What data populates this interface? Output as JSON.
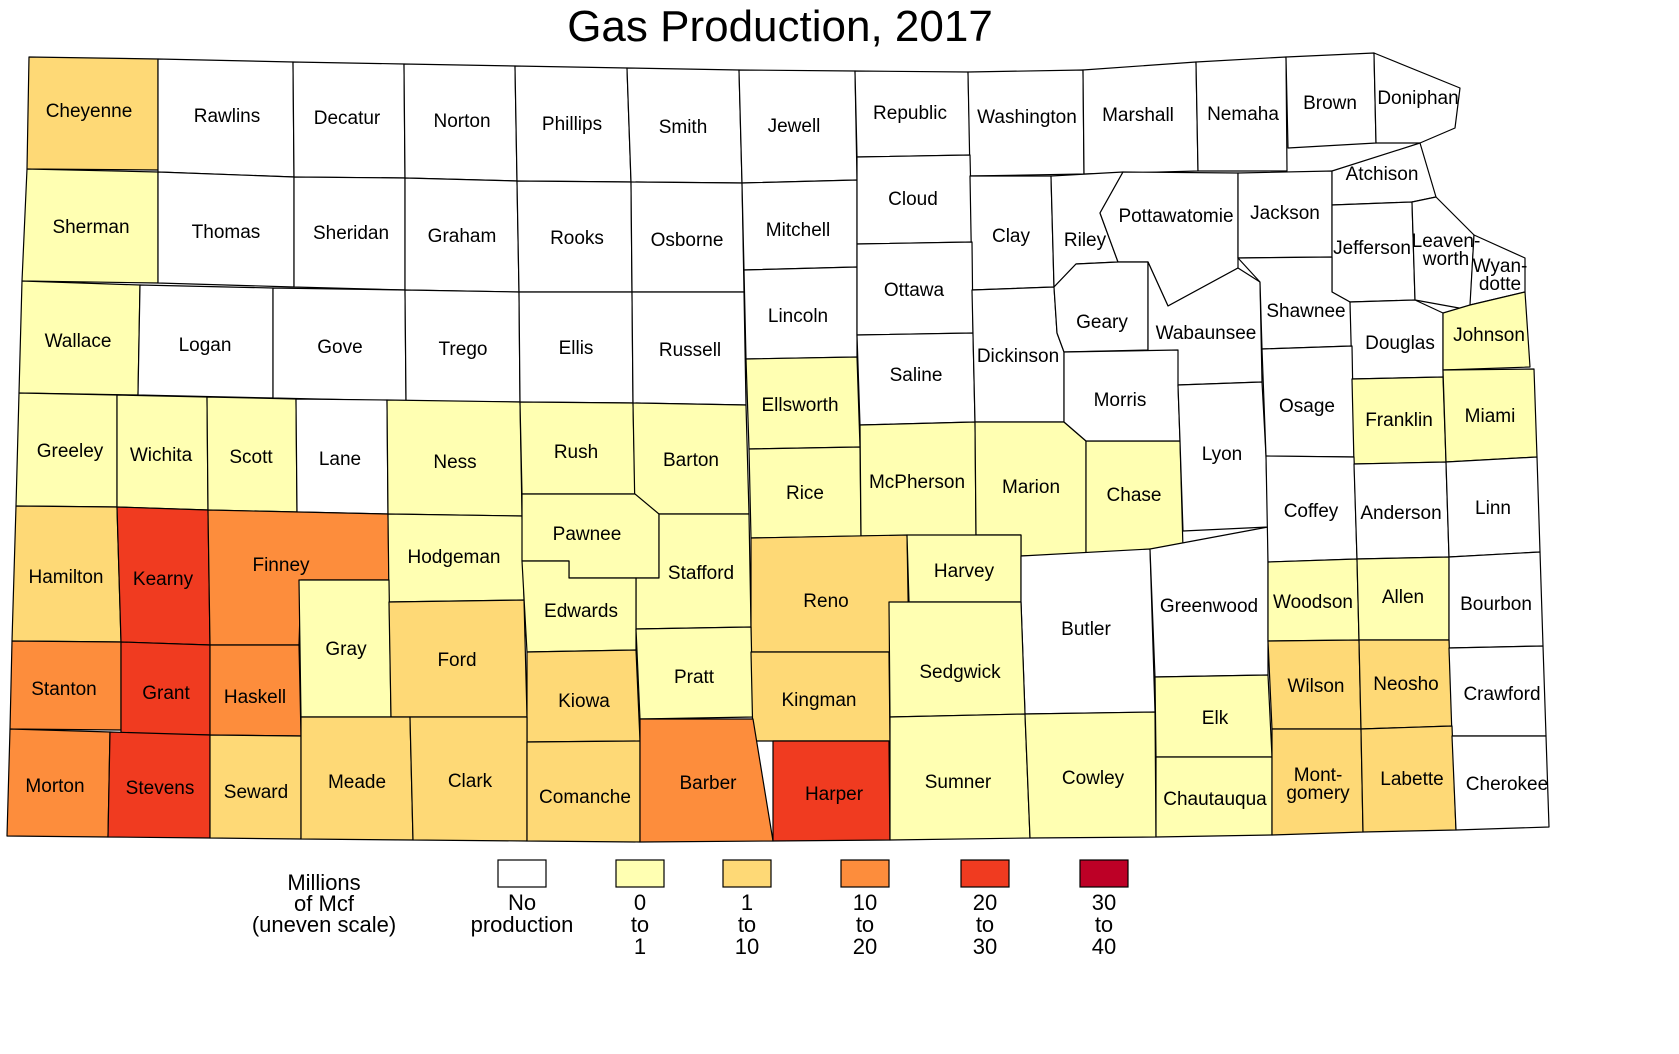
{
  "title": "Gas Production, 2017",
  "colors": {
    "none": "#ffffff",
    "0-1": "#ffffb2",
    "1-10": "#fed976",
    "10-20": "#fd8d3c",
    "20-30": "#f03b20",
    "30-40": "#bd0026"
  },
  "legend": {
    "unit_lines": [
      "Millions",
      "of Mcf",
      "(uneven scale)"
    ],
    "items": [
      {
        "key": "none",
        "lines": [
          "No",
          "production"
        ]
      },
      {
        "key": "0-1",
        "lines": [
          "0",
          "to",
          "1"
        ]
      },
      {
        "key": "1-10",
        "lines": [
          "1",
          "to",
          "10"
        ]
      },
      {
        "key": "10-20",
        "lines": [
          "10",
          "to",
          "20"
        ]
      },
      {
        "key": "20-30",
        "lines": [
          "20",
          "to",
          "30"
        ]
      },
      {
        "key": "30-40",
        "lines": [
          "30",
          "to",
          "40"
        ]
      }
    ]
  },
  "counties": [
    {
      "name": "Cheyenne",
      "class": "1-10"
    },
    {
      "name": "Rawlins",
      "class": "none"
    },
    {
      "name": "Decatur",
      "class": "none"
    },
    {
      "name": "Norton",
      "class": "none"
    },
    {
      "name": "Phillips",
      "class": "none"
    },
    {
      "name": "Smith",
      "class": "none"
    },
    {
      "name": "Jewell",
      "class": "none"
    },
    {
      "name": "Republic",
      "class": "none"
    },
    {
      "name": "Washington",
      "class": "none"
    },
    {
      "name": "Marshall",
      "class": "none"
    },
    {
      "name": "Nemaha",
      "class": "none"
    },
    {
      "name": "Brown",
      "class": "none"
    },
    {
      "name": "Doniphan",
      "class": "none"
    },
    {
      "name": "Sherman",
      "class": "0-1"
    },
    {
      "name": "Thomas",
      "class": "none"
    },
    {
      "name": "Sheridan",
      "class": "none"
    },
    {
      "name": "Graham",
      "class": "none"
    },
    {
      "name": "Rooks",
      "class": "none"
    },
    {
      "name": "Osborne",
      "class": "none"
    },
    {
      "name": "Mitchell",
      "class": "none"
    },
    {
      "name": "Cloud",
      "class": "none"
    },
    {
      "name": "Clay",
      "class": "none"
    },
    {
      "name": "Riley",
      "class": "none"
    },
    {
      "name": "Pottawatomie",
      "class": "none"
    },
    {
      "name": "Jackson",
      "class": "none"
    },
    {
      "name": "Atchison",
      "class": "none"
    },
    {
      "name": "Jefferson",
      "class": "none"
    },
    {
      "name": "Leaven-worth",
      "class": "none"
    },
    {
      "name": "Wyan-dotte",
      "class": "none"
    },
    {
      "name": "Wallace",
      "class": "0-1"
    },
    {
      "name": "Logan",
      "class": "none"
    },
    {
      "name": "Gove",
      "class": "none"
    },
    {
      "name": "Trego",
      "class": "none"
    },
    {
      "name": "Ellis",
      "class": "none"
    },
    {
      "name": "Russell",
      "class": "none"
    },
    {
      "name": "Lincoln",
      "class": "none"
    },
    {
      "name": "Ottawa",
      "class": "none"
    },
    {
      "name": "Saline",
      "class": "none"
    },
    {
      "name": "Dickinson",
      "class": "none"
    },
    {
      "name": "Geary",
      "class": "none"
    },
    {
      "name": "Wabaunsee",
      "class": "none"
    },
    {
      "name": "Shawnee",
      "class": "none"
    },
    {
      "name": "Douglas",
      "class": "none"
    },
    {
      "name": "Johnson",
      "class": "0-1"
    },
    {
      "name": "Greeley",
      "class": "0-1"
    },
    {
      "name": "Wichita",
      "class": "0-1"
    },
    {
      "name": "Scott",
      "class": "0-1"
    },
    {
      "name": "Lane",
      "class": "none"
    },
    {
      "name": "Ness",
      "class": "0-1"
    },
    {
      "name": "Rush",
      "class": "0-1"
    },
    {
      "name": "Barton",
      "class": "0-1"
    },
    {
      "name": "Ellsworth",
      "class": "0-1"
    },
    {
      "name": "Rice",
      "class": "0-1"
    },
    {
      "name": "McPherson",
      "class": "0-1"
    },
    {
      "name": "Marion",
      "class": "0-1"
    },
    {
      "name": "Chase",
      "class": "0-1"
    },
    {
      "name": "Morris",
      "class": "none"
    },
    {
      "name": "Lyon",
      "class": "none"
    },
    {
      "name": "Osage",
      "class": "none"
    },
    {
      "name": "Franklin",
      "class": "0-1"
    },
    {
      "name": "Miami",
      "class": "0-1"
    },
    {
      "name": "Hamilton",
      "class": "1-10"
    },
    {
      "name": "Kearny",
      "class": "20-30"
    },
    {
      "name": "Finney",
      "class": "10-20"
    },
    {
      "name": "Hodgeman",
      "class": "0-1"
    },
    {
      "name": "Pawnee",
      "class": "0-1"
    },
    {
      "name": "Stafford",
      "class": "0-1"
    },
    {
      "name": "Reno",
      "class": "1-10"
    },
    {
      "name": "Harvey",
      "class": "0-1"
    },
    {
      "name": "Butler",
      "class": "none"
    },
    {
      "name": "Greenwood",
      "class": "none"
    },
    {
      "name": "Coffey",
      "class": "none"
    },
    {
      "name": "Anderson",
      "class": "none"
    },
    {
      "name": "Linn",
      "class": "none"
    },
    {
      "name": "Gray",
      "class": "0-1"
    },
    {
      "name": "Ford",
      "class": "1-10"
    },
    {
      "name": "Edwards",
      "class": "0-1"
    },
    {
      "name": "Woodson",
      "class": "0-1"
    },
    {
      "name": "Allen",
      "class": "0-1"
    },
    {
      "name": "Bourbon",
      "class": "none"
    },
    {
      "name": "Stanton",
      "class": "10-20"
    },
    {
      "name": "Grant",
      "class": "20-30"
    },
    {
      "name": "Haskell",
      "class": "10-20"
    },
    {
      "name": "Kiowa",
      "class": "1-10"
    },
    {
      "name": "Pratt",
      "class": "0-1"
    },
    {
      "name": "Kingman",
      "class": "1-10"
    },
    {
      "name": "Sedgwick",
      "class": "0-1"
    },
    {
      "name": "Elk",
      "class": "0-1"
    },
    {
      "name": "Wilson",
      "class": "1-10"
    },
    {
      "name": "Neosho",
      "class": "1-10"
    },
    {
      "name": "Crawford",
      "class": "none"
    },
    {
      "name": "Morton",
      "class": "10-20"
    },
    {
      "name": "Stevens",
      "class": "20-30"
    },
    {
      "name": "Seward",
      "class": "1-10"
    },
    {
      "name": "Meade",
      "class": "1-10"
    },
    {
      "name": "Clark",
      "class": "1-10"
    },
    {
      "name": "Comanche",
      "class": "1-10"
    },
    {
      "name": "Barber",
      "class": "10-20"
    },
    {
      "name": "Harper",
      "class": "20-30"
    },
    {
      "name": "Sumner",
      "class": "0-1"
    },
    {
      "name": "Cowley",
      "class": "0-1"
    },
    {
      "name": "Chautauqua",
      "class": "0-1"
    },
    {
      "name": "Mont-gomery",
      "class": "1-10"
    },
    {
      "name": "Labette",
      "class": "1-10"
    },
    {
      "name": "Cherokee",
      "class": "none"
    }
  ]
}
